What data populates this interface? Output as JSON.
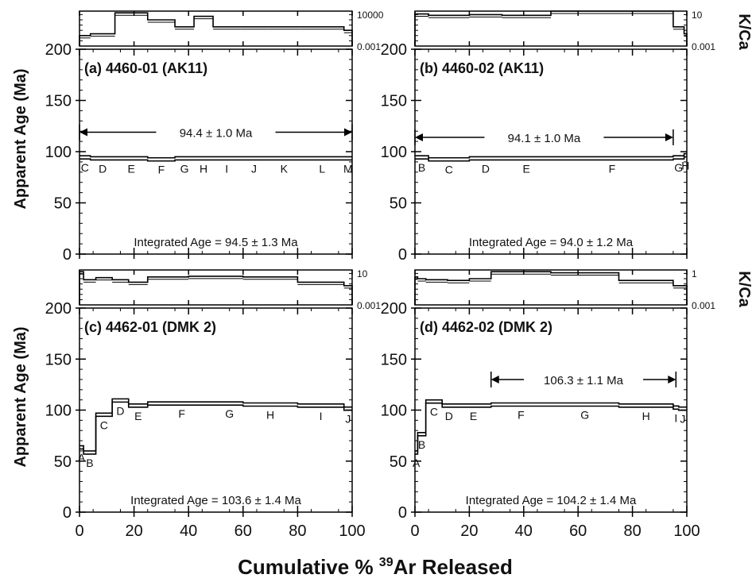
{
  "figure": {
    "x_axis_label_main": "Cumulative % ",
    "x_axis_label_sup": "39",
    "x_axis_label_tail": "Ar Released",
    "y_axis_label": "Apparent Age (Ma)",
    "kca_label": "K/Ca"
  },
  "chart_data": [
    {
      "type": "step",
      "panel": "a",
      "title": "(a) 4460-01  (AK11)",
      "xlim": [
        0,
        100
      ],
      "ylim": [
        0,
        200
      ],
      "x_ticks": [
        "0",
        "20",
        "40",
        "60",
        "80",
        "100"
      ],
      "y_ticks": [
        "0",
        "50",
        "100",
        "150",
        "200"
      ],
      "kca_ticks": [
        "10000",
        "0.001"
      ],
      "plateau": {
        "label": "94.4 ± 1.0 Ma",
        "x_start": 0,
        "x_end": 100,
        "y": 119
      },
      "integrated_age": "Integrated Age = 94.5 ± 1.3 Ma",
      "steps": [
        {
          "label": "C",
          "x0": 0,
          "x1": 4,
          "age": 96
        },
        {
          "label": "D",
          "x0": 4,
          "x1": 13,
          "age": 95
        },
        {
          "label": "E",
          "x0": 13,
          "x1": 25,
          "age": 95
        },
        {
          "label": "F",
          "x0": 25,
          "x1": 35,
          "age": 94
        },
        {
          "label": "G",
          "x0": 35,
          "x1": 42,
          "age": 95
        },
        {
          "label": "H",
          "x0": 42,
          "x1": 49,
          "age": 95
        },
        {
          "label": "I",
          "x0": 49,
          "x1": 59,
          "age": 95
        },
        {
          "label": "J",
          "x0": 59,
          "x1": 69,
          "age": 95
        },
        {
          "label": "K",
          "x0": 69,
          "x1": 81,
          "age": 95
        },
        {
          "label": "L",
          "x0": 81,
          "x1": 97,
          "age": 95
        },
        {
          "label": "M",
          "x0": 97,
          "x1": 100,
          "age": 95
        }
      ],
      "kca": [
        {
          "x0": 0,
          "x1": 4,
          "v": 0.3
        },
        {
          "x0": 4,
          "x1": 13,
          "v": 0.35
        },
        {
          "x0": 13,
          "x1": 25,
          "v": 0.95
        },
        {
          "x0": 25,
          "x1": 35,
          "v": 0.75
        },
        {
          "x0": 35,
          "x1": 42,
          "v": 0.55
        },
        {
          "x0": 42,
          "x1": 49,
          "v": 0.85
        },
        {
          "x0": 49,
          "x1": 59,
          "v": 0.55
        },
        {
          "x0": 59,
          "x1": 69,
          "v": 0.55
        },
        {
          "x0": 69,
          "x1": 81,
          "v": 0.55
        },
        {
          "x0": 81,
          "x1": 97,
          "v": 0.55
        },
        {
          "x0": 97,
          "x1": 100,
          "v": 0.45
        }
      ]
    },
    {
      "type": "step",
      "panel": "b",
      "title": "(b) 4460-02  (AK11)",
      "xlim": [
        0,
        100
      ],
      "ylim": [
        0,
        200
      ],
      "x_ticks": [
        "0",
        "20",
        "40",
        "60",
        "80",
        "100"
      ],
      "y_ticks": [
        "0",
        "50",
        "100",
        "150",
        "200"
      ],
      "kca_ticks": [
        "10",
        "0.001"
      ],
      "plateau": {
        "label": "94.1 ± 1.0 Ma",
        "x_start": 0,
        "x_end": 95,
        "y": 114
      },
      "integrated_age": "Integrated Age = 94.0 ± 1.2 Ma",
      "steps": [
        {
          "label": "B",
          "x0": 0,
          "x1": 5,
          "age": 96
        },
        {
          "label": "C",
          "x0": 5,
          "x1": 20,
          "age": 94
        },
        {
          "label": "D",
          "x0": 20,
          "x1": 32,
          "age": 95
        },
        {
          "label": "E",
          "x0": 32,
          "x1": 50,
          "age": 95
        },
        {
          "label": "F",
          "x0": 50,
          "x1": 95,
          "age": 95
        },
        {
          "label": "G",
          "x0": 95,
          "x1": 99,
          "age": 96
        },
        {
          "label": "H",
          "x0": 99,
          "x1": 100,
          "age": 98
        }
      ],
      "kca": [
        {
          "x0": 0,
          "x1": 5,
          "v": 0.92
        },
        {
          "x0": 5,
          "x1": 20,
          "v": 0.88
        },
        {
          "x0": 20,
          "x1": 32,
          "v": 0.9
        },
        {
          "x0": 32,
          "x1": 50,
          "v": 0.88
        },
        {
          "x0": 50,
          "x1": 95,
          "v": 1.0
        },
        {
          "x0": 95,
          "x1": 99,
          "v": 0.55
        },
        {
          "x0": 99,
          "x1": 100,
          "v": 0.35
        }
      ]
    },
    {
      "type": "step",
      "panel": "c",
      "title": "(c) 4462-01 (DMK 2)",
      "xlim": [
        0,
        100
      ],
      "ylim": [
        0,
        200
      ],
      "x_ticks": [
        "0",
        "20",
        "40",
        "60",
        "80",
        "100"
      ],
      "y_ticks": [
        "0",
        "50",
        "100",
        "150",
        "200"
      ],
      "kca_ticks": [
        "10",
        "0.001"
      ],
      "integrated_age": "Integrated Age = 103.6 ± 1.4 Ma",
      "steps": [
        {
          "label": "A",
          "x0": 0,
          "x1": 1.5,
          "age": 65
        },
        {
          "label": "B",
          "x0": 1.5,
          "x1": 6,
          "age": 60
        },
        {
          "label": "C",
          "x0": 6,
          "x1": 12,
          "age": 97
        },
        {
          "label": "D",
          "x0": 12,
          "x1": 18,
          "age": 111
        },
        {
          "label": "E",
          "x0": 18,
          "x1": 25,
          "age": 106
        },
        {
          "label": "F",
          "x0": 25,
          "x1": 50,
          "age": 108
        },
        {
          "label": "G",
          "x0": 50,
          "x1": 60,
          "age": 108
        },
        {
          "label": "H",
          "x0": 60,
          "x1": 80,
          "age": 107
        },
        {
          "label": "I",
          "x0": 80,
          "x1": 97,
          "age": 106
        },
        {
          "label": "J",
          "x0": 97,
          "x1": 100,
          "age": 103
        }
      ],
      "kca": [
        {
          "x0": 0,
          "x1": 1.5,
          "v": 0.95
        },
        {
          "x0": 1.5,
          "x1": 6,
          "v": 0.72
        },
        {
          "x0": 6,
          "x1": 12,
          "v": 0.78
        },
        {
          "x0": 12,
          "x1": 18,
          "v": 0.72
        },
        {
          "x0": 18,
          "x1": 25,
          "v": 0.65
        },
        {
          "x0": 25,
          "x1": 40,
          "v": 0.8
        },
        {
          "x0": 40,
          "x1": 60,
          "v": 0.82
        },
        {
          "x0": 60,
          "x1": 80,
          "v": 0.8
        },
        {
          "x0": 80,
          "x1": 97,
          "v": 0.65
        },
        {
          "x0": 97,
          "x1": 100,
          "v": 0.55
        }
      ]
    },
    {
      "type": "step",
      "panel": "d",
      "title": "(d) 4462-02 (DMK 2)",
      "xlim": [
        0,
        100
      ],
      "ylim": [
        0,
        200
      ],
      "x_ticks": [
        "0",
        "20",
        "40",
        "60",
        "80",
        "100"
      ],
      "y_ticks": [
        "0",
        "50",
        "100",
        "150",
        "200"
      ],
      "kca_ticks": [
        "1",
        "0.001"
      ],
      "plateau": {
        "label": "106.3 ± 1.1 Ma",
        "x_start": 28,
        "x_end": 96,
        "y": 130
      },
      "integrated_age": "Integrated Age = 104.2 ± 1.4 Ma",
      "steps": [
        {
          "label": "A",
          "x0": 0,
          "x1": 1,
          "age": 60
        },
        {
          "label": "B",
          "x0": 1,
          "x1": 4,
          "age": 78
        },
        {
          "label": "C",
          "x0": 4,
          "x1": 10,
          "age": 110
        },
        {
          "label": "D",
          "x0": 10,
          "x1": 15,
          "age": 106
        },
        {
          "label": "E",
          "x0": 15,
          "x1": 28,
          "age": 106
        },
        {
          "label": "F",
          "x0": 28,
          "x1": 50,
          "age": 107
        },
        {
          "label": "G",
          "x0": 50,
          "x1": 75,
          "age": 107
        },
        {
          "label": "H",
          "x0": 75,
          "x1": 95,
          "age": 106
        },
        {
          "label": "I",
          "x0": 95,
          "x1": 97,
          "age": 104
        },
        {
          "label": "J",
          "x0": 97,
          "x1": 100,
          "age": 103
        }
      ],
      "kca": [
        {
          "x0": 0,
          "x1": 1,
          "v": 0.8
        },
        {
          "x0": 1,
          "x1": 4,
          "v": 0.75
        },
        {
          "x0": 4,
          "x1": 12,
          "v": 0.72
        },
        {
          "x0": 12,
          "x1": 20,
          "v": 0.7
        },
        {
          "x0": 20,
          "x1": 28,
          "v": 0.75
        },
        {
          "x0": 28,
          "x1": 50,
          "v": 0.95
        },
        {
          "x0": 50,
          "x1": 75,
          "v": 0.92
        },
        {
          "x0": 75,
          "x1": 95,
          "v": 0.7
        },
        {
          "x0": 95,
          "x1": 100,
          "v": 0.55
        }
      ]
    }
  ]
}
